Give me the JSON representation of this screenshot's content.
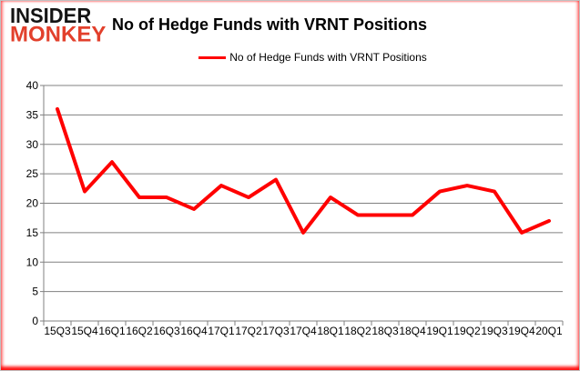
{
  "logo": {
    "line1": "INSIDER",
    "line2": "MONKEY"
  },
  "header": {
    "title": "No of Hedge Funds with VRNT Positions"
  },
  "legend": {
    "label": "No of Hedge Funds with VRNT Positions"
  },
  "colors": {
    "line": "#ff0000",
    "grid": "#808080",
    "axis": "#808080",
    "text": "#000000",
    "logo_black": "#141414",
    "logo_red": "#e2402c"
  },
  "chart_data": {
    "type": "line",
    "title": "No of Hedge Funds with VRNT Positions",
    "categories": [
      "15Q3",
      "15Q4",
      "16Q1",
      "16Q2",
      "16Q3",
      "16Q4",
      "17Q1",
      "17Q2",
      "17Q3",
      "17Q4",
      "18Q1",
      "18Q2",
      "18Q3",
      "18Q4",
      "19Q1",
      "19Q2",
      "19Q3",
      "19Q4",
      "20Q1"
    ],
    "series": [
      {
        "name": "No of Hedge Funds with VRNT Positions",
        "color": "#ff0000",
        "values": [
          36,
          22,
          27,
          21,
          21,
          19,
          23,
          21,
          24,
          15,
          21,
          18,
          18,
          18,
          22,
          23,
          22,
          15,
          17
        ]
      }
    ],
    "xlabel": "",
    "ylabel": "",
    "ylim": [
      0,
      40
    ],
    "yticks": [
      0,
      5,
      10,
      15,
      20,
      25,
      30,
      35,
      40
    ],
    "grid": "horizontal",
    "legend_position": "top-center"
  }
}
